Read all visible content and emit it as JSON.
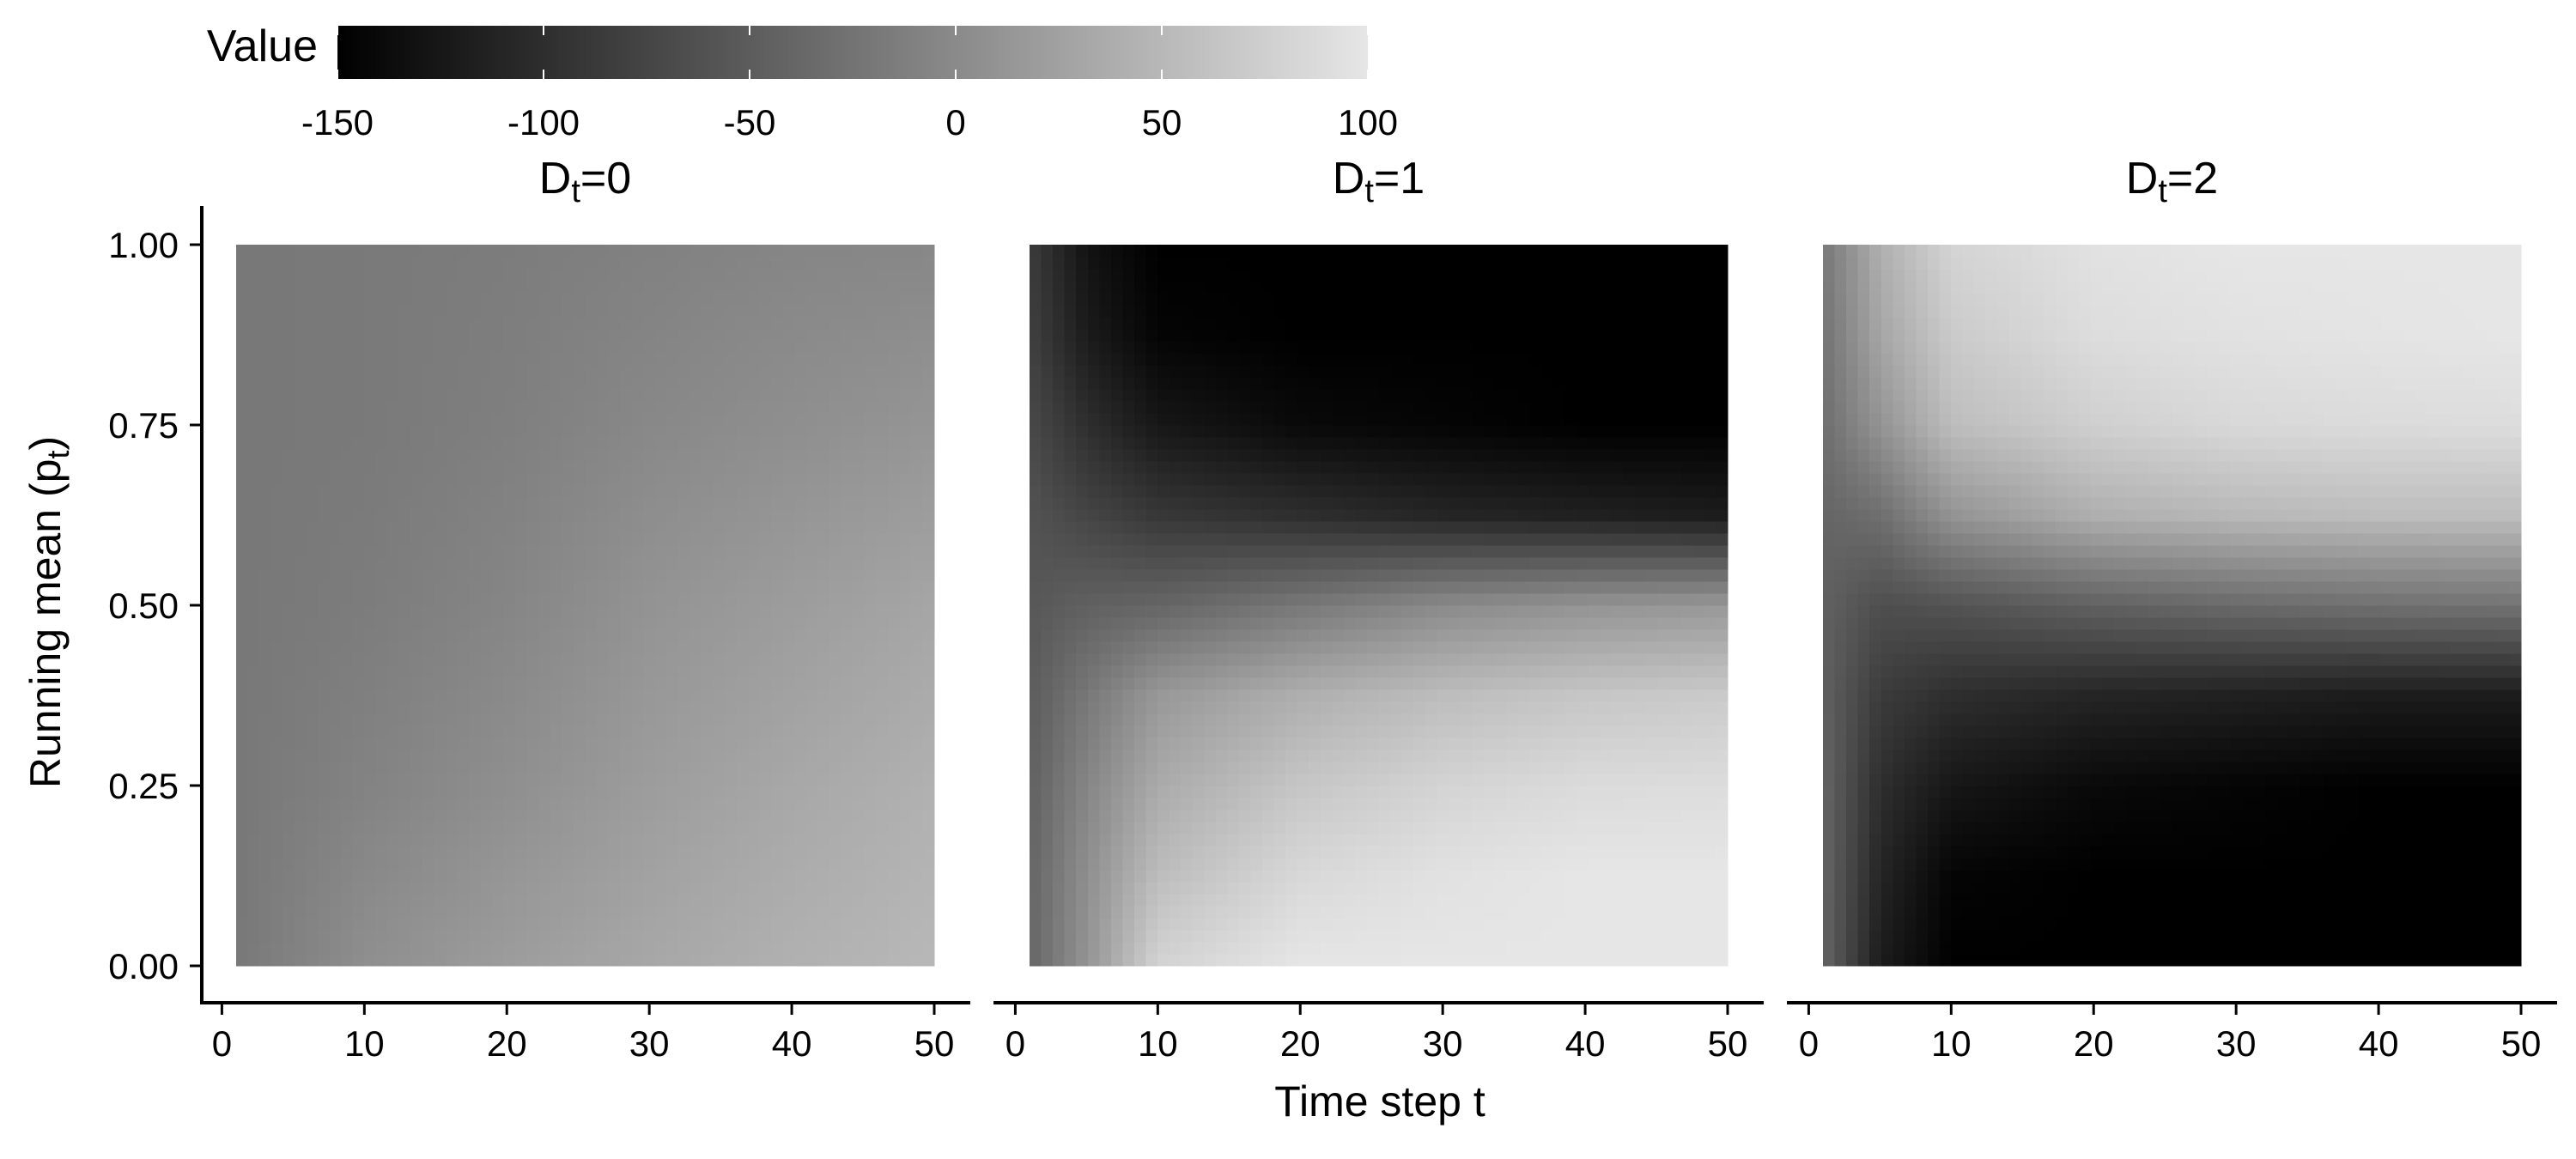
{
  "chart_data": {
    "type": "heatmap",
    "title": "",
    "xlabel": "Time step t",
    "ylabel": {
      "text": "Running mean (p",
      "subscript": "t",
      "suffix": ")"
    },
    "x_range": [
      1,
      50
    ],
    "y_range": [
      0,
      1
    ],
    "x_ticks": [
      0,
      10,
      20,
      30,
      40,
      50
    ],
    "y_ticks": [
      "0.00",
      "0.25",
      "0.50",
      "0.75",
      "1.00"
    ],
    "color_scale": {
      "name": "Value",
      "limits": [
        -150,
        100
      ],
      "low_color": "#000000",
      "high_color": "#e6e6e6",
      "breaks": [
        "-150",
        "-100",
        "-50",
        "0",
        "50",
        "100"
      ],
      "legend_position": "top"
    },
    "panels": [
      {
        "title": {
          "base": "D",
          "subscript": "t",
          "suffix": "=0"
        },
        "grid_x": [
          1,
          10,
          20,
          30,
          40,
          50
        ],
        "grid_y": [
          0,
          0.25,
          0.5,
          0.75,
          1.0
        ],
        "values": [
          [
            -20,
            5,
            20,
            32,
            42,
            50
          ],
          [
            -20,
            -8,
            5,
            20,
            32,
            42
          ],
          [
            -20,
            -15,
            -5,
            10,
            20,
            30
          ],
          [
            -20,
            -18,
            -12,
            -2,
            5,
            12
          ],
          [
            -20,
            -18,
            -15,
            -10,
            -5,
            -3
          ]
        ]
      },
      {
        "title": {
          "base": "D",
          "subscript": "t",
          "suffix": "=1"
        },
        "grid_x": [
          1,
          5,
          10,
          20,
          30,
          40,
          50
        ],
        "grid_y": [
          0,
          0.125,
          0.25,
          0.375,
          0.5,
          0.625,
          0.75,
          0.875,
          1.0
        ],
        "values": [
          [
            -40,
            10,
            80,
            100,
            100,
            100,
            100
          ],
          [
            -40,
            5,
            55,
            85,
            95,
            100,
            100
          ],
          [
            -45,
            -5,
            35,
            65,
            80,
            88,
            90
          ],
          [
            -50,
            -20,
            15,
            40,
            55,
            65,
            70
          ],
          [
            -55,
            -45,
            -40,
            -20,
            0,
            10,
            15
          ],
          [
            -60,
            -75,
            -90,
            -100,
            -110,
            -115,
            -120
          ],
          [
            -70,
            -100,
            -125,
            -140,
            -145,
            -150,
            -150
          ],
          [
            -80,
            -120,
            -145,
            -150,
            -150,
            -150,
            -150
          ],
          [
            -85,
            -130,
            -150,
            -150,
            -150,
            -150,
            -150
          ]
        ]
      },
      {
        "title": {
          "base": "D",
          "subscript": "t",
          "suffix": "=2"
        },
        "grid_x": [
          1,
          5,
          10,
          20,
          30,
          40,
          50
        ],
        "grid_y": [
          0,
          0.125,
          0.25,
          0.375,
          0.5,
          0.625,
          0.75,
          0.875,
          1.0
        ],
        "values": [
          [
            -40,
            -120,
            -150,
            -150,
            -150,
            -150,
            -150
          ],
          [
            -40,
            -110,
            -145,
            -150,
            -150,
            -150,
            -150
          ],
          [
            -40,
            -100,
            -125,
            -140,
            -145,
            -150,
            -150
          ],
          [
            -45,
            -85,
            -100,
            -110,
            -115,
            -120,
            -120
          ],
          [
            -45,
            -65,
            -60,
            -45,
            -35,
            -28,
            -25
          ],
          [
            -40,
            -30,
            10,
            40,
            50,
            55,
            55
          ],
          [
            -30,
            10,
            55,
            75,
            85,
            88,
            90
          ],
          [
            -25,
            30,
            70,
            90,
            95,
            98,
            100
          ],
          [
            -20,
            40,
            80,
            95,
            100,
            100,
            100
          ]
        ]
      }
    ]
  }
}
